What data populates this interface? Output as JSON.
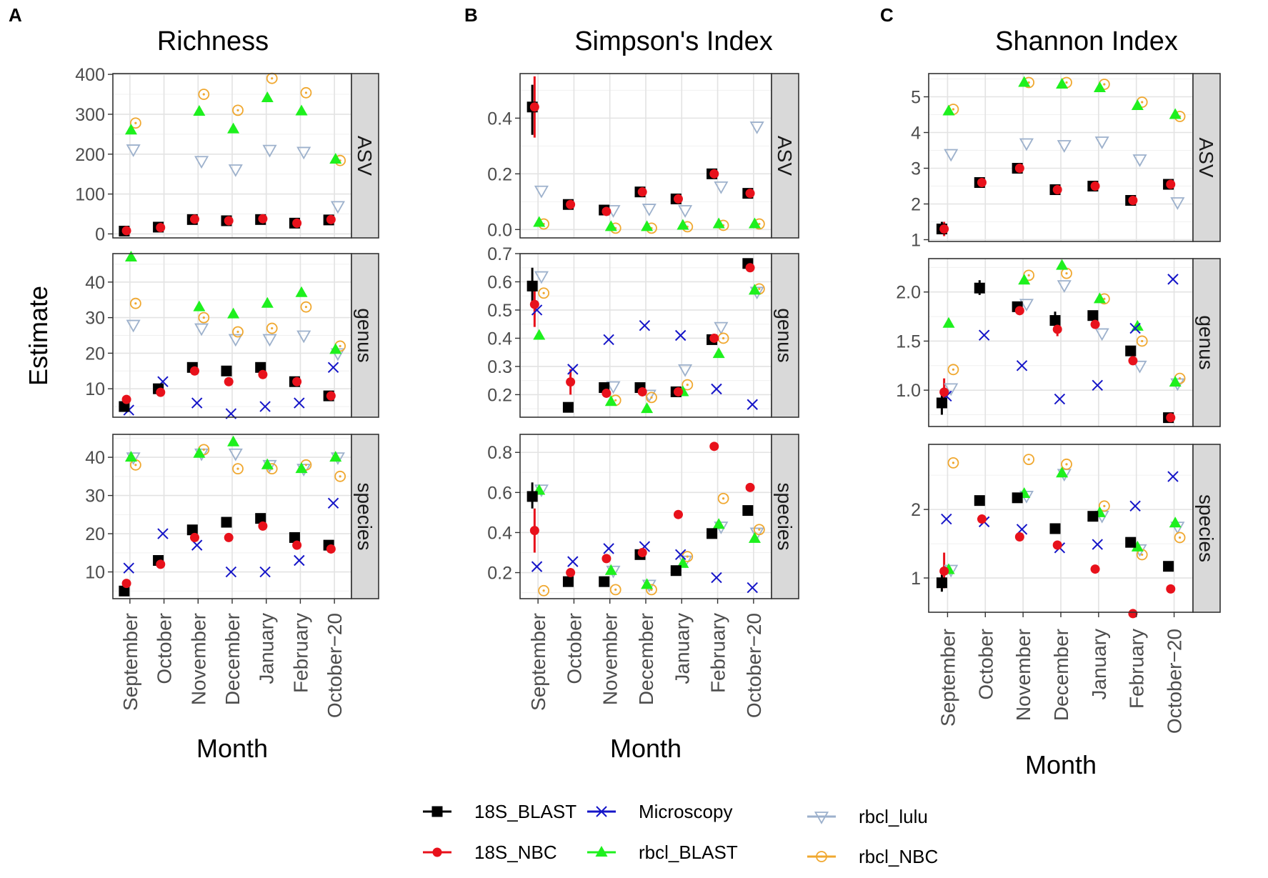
{
  "chart_data": {
    "type": "scatter",
    "ylabel": "Estimate",
    "xlabel": "Month",
    "months": [
      "September",
      "October",
      "November",
      "December",
      "January",
      "February",
      "October−20"
    ],
    "rows": [
      "ASV",
      "genus",
      "species"
    ],
    "series": [
      {
        "key": "blast18",
        "name": "18S_BLAST",
        "color": "#000000",
        "shape": "square"
      },
      {
        "key": "nbc18",
        "name": "18S_NBC",
        "color": "#e8111b",
        "shape": "circle"
      },
      {
        "key": "micro",
        "name": "Microscopy",
        "color": "#1515c8",
        "shape": "x"
      },
      {
        "key": "rblast",
        "name": "rbcl_BLAST",
        "color": "#1ef01e",
        "shape": "triangle"
      },
      {
        "key": "lulu",
        "name": "rbcl_lulu",
        "color": "#9db1cc",
        "shape": "triangle-down"
      },
      {
        "key": "rnbc",
        "name": "rbcl_NBC",
        "color": "#f0a830",
        "shape": "circle-dot"
      }
    ],
    "legend_order": [
      "blast18",
      "micro",
      "lulu",
      "nbc18",
      "rblast",
      "rnbc"
    ],
    "panels": [
      {
        "letter": "A",
        "title": "Richness",
        "facets": [
          {
            "row": "ASV",
            "ylim": [
              -10,
              402
            ],
            "yticks": [
              0,
              100,
              200,
              300,
              400
            ],
            "data": {
              "blast18": [
                7,
                17,
                36,
                33,
                36,
                27,
                35
              ],
              "nbc18": [
                8,
                16,
                37,
                33,
                38,
                27,
                36
              ],
              "micro": [
                null,
                null,
                null,
                null,
                null,
                null,
                null
              ],
              "rblast": [
                260,
                null,
                307,
                263,
                341,
                308,
                187
              ],
              "lulu": [
                212,
                null,
                183,
                162,
                211,
                206,
                70
              ],
              "rnbc": [
                278,
                null,
                350,
                310,
                390,
                354,
                184
              ]
            },
            "errors": {}
          },
          {
            "row": "genus",
            "ylim": [
              2,
              48
            ],
            "yticks": [
              10,
              20,
              30,
              40
            ],
            "data": {
              "blast18": [
                5,
                10,
                16,
                15,
                16,
                12,
                8
              ],
              "nbc18": [
                7,
                9,
                15,
                12,
                14,
                12,
                8
              ],
              "micro": [
                4,
                12,
                6,
                3,
                5,
                6,
                16
              ],
              "rblast": [
                47,
                null,
                33,
                31,
                34,
                37,
                21
              ],
              "lulu": [
                28,
                null,
                27,
                24,
                24,
                25,
                20
              ],
              "rnbc": [
                34,
                null,
                30,
                26,
                27,
                33,
                22
              ]
            },
            "errors": {}
          },
          {
            "row": "species",
            "ylim": [
              3,
              46
            ],
            "yticks": [
              10,
              20,
              30,
              40
            ],
            "data": {
              "blast18": [
                5,
                13,
                21,
                23,
                24,
                19,
                17
              ],
              "nbc18": [
                7,
                12,
                19,
                19,
                22,
                17,
                16
              ],
              "micro": [
                11,
                20,
                17,
                10,
                10,
                13,
                28
              ],
              "rblast": [
                40,
                null,
                41,
                44,
                38,
                37,
                40
              ],
              "lulu": [
                40,
                null,
                41,
                41,
                38,
                37,
                40
              ],
              "rnbc": [
                38,
                null,
                42,
                37,
                37,
                38,
                35
              ]
            },
            "errors": {}
          }
        ]
      },
      {
        "letter": "B",
        "title": "Simpson's Index",
        "facets": [
          {
            "row": "ASV",
            "ylim": [
              -0.03,
              0.56
            ],
            "yticks": [
              0.0,
              0.2,
              0.4
            ],
            "tick_labels": [
              "0.0",
              "0.2",
              "0.4"
            ],
            "data": {
              "blast18": [
                0.44,
                0.09,
                0.07,
                0.135,
                0.11,
                0.2,
                0.13
              ],
              "nbc18": [
                0.44,
                0.09,
                0.065,
                0.135,
                0.11,
                0.2,
                0.13
              ],
              "micro": [
                null,
                null,
                null,
                null,
                null,
                null,
                null
              ],
              "rblast": [
                0.025,
                null,
                0.01,
                0.01,
                0.015,
                0.02,
                0.02
              ],
              "lulu": [
                0.14,
                null,
                0.07,
                0.075,
                0.07,
                0.155,
                0.37
              ],
              "rnbc": [
                0.02,
                null,
                0.005,
                0.005,
                0.01,
                0.015,
                0.02
              ]
            },
            "errors": {
              "blast18": [
                [
                  0.34,
                  0.52
                ],
                null,
                null,
                null,
                null,
                null,
                null
              ],
              "nbc18": [
                [
                  0.33,
                  0.55
                ],
                null,
                null,
                null,
                null,
                null,
                null
              ]
            }
          },
          {
            "row": "genus",
            "ylim": [
              0.12,
              0.7
            ],
            "yticks": [
              0.2,
              0.3,
              0.4,
              0.5,
              0.6,
              0.7
            ],
            "tick_labels": [
              "0.2",
              "0.3",
              "0.4",
              "0.5",
              "0.6",
              "0.7"
            ],
            "data": {
              "blast18": [
                0.585,
                0.155,
                0.225,
                0.225,
                0.21,
                0.395,
                0.665
              ],
              "nbc18": [
                0.52,
                0.245,
                0.205,
                0.21,
                0.21,
                0.4,
                0.65
              ],
              "micro": [
                0.5,
                0.29,
                0.395,
                0.445,
                0.41,
                0.22,
                0.165
              ],
              "rblast": [
                0.41,
                null,
                0.175,
                0.15,
                0.21,
                0.345,
                0.57
              ],
              "lulu": [
                0.62,
                null,
                0.23,
                0.2,
                0.29,
                0.44,
                0.565
              ],
              "rnbc": [
                0.56,
                null,
                0.18,
                0.19,
                0.235,
                0.4,
                0.575
              ]
            },
            "errors": {
              "blast18": [
                [
                  0.52,
                  0.65
                ],
                null,
                null,
                null,
                null,
                null,
                null
              ],
              "nbc18": [
                [
                  0.44,
                  0.6
                ],
                [
                  0.2,
                  0.29
                ],
                null,
                null,
                null,
                null,
                null
              ]
            }
          },
          {
            "row": "species",
            "ylim": [
              0.07,
              0.89
            ],
            "yticks": [
              0.2,
              0.4,
              0.6,
              0.8
            ],
            "tick_labels": [
              "0.2",
              "0.4",
              "0.6",
              "0.8"
            ],
            "data": {
              "blast18": [
                0.58,
                0.155,
                0.155,
                0.29,
                0.21,
                0.395,
                0.51
              ],
              "nbc18": [
                0.41,
                0.2,
                0.27,
                0.3,
                0.49,
                0.83,
                0.625
              ],
              "micro": [
                0.23,
                0.255,
                0.32,
                0.33,
                0.29,
                0.175,
                0.125
              ],
              "rblast": [
                0.61,
                null,
                0.21,
                0.14,
                0.245,
                0.44,
                0.37
              ],
              "lulu": [
                0.615,
                null,
                0.21,
                0.14,
                0.26,
                0.43,
                0.4
              ],
              "rnbc": [
                0.11,
                null,
                0.115,
                0.115,
                0.28,
                0.57,
                0.415
              ]
            },
            "errors": {
              "blast18": [
                [
                  0.52,
                  0.65
                ],
                null,
                null,
                null,
                null,
                null,
                null
              ],
              "nbc18": [
                [
                  0.3,
                  0.52
                ],
                null,
                null,
                null,
                null,
                null,
                null
              ]
            }
          }
        ]
      },
      {
        "letter": "C",
        "title": "Shannon Index",
        "facets": [
          {
            "row": "ASV",
            "ylim": [
              0.95,
              5.65
            ],
            "yticks": [
              1,
              2,
              3,
              4,
              5
            ],
            "data": {
              "blast18": [
                1.3,
                2.6,
                3.0,
                2.4,
                2.5,
                2.1,
                2.55
              ],
              "nbc18": [
                1.3,
                2.6,
                3.0,
                2.4,
                2.5,
                2.1,
                2.55
              ],
              "micro": [
                null,
                null,
                null,
                null,
                null,
                null,
                null
              ],
              "rblast": [
                4.6,
                null,
                5.4,
                5.35,
                5.25,
                4.75,
                4.5
              ],
              "lulu": [
                3.4,
                null,
                3.7,
                3.65,
                3.75,
                3.25,
                2.05
              ],
              "rnbc": [
                4.65,
                null,
                5.4,
                5.4,
                5.35,
                4.85,
                4.45
              ]
            },
            "errors": {
              "blast18": [
                [
                  1.15,
                  1.5
                ],
                null,
                null,
                null,
                null,
                null,
                null
              ],
              "nbc18": [
                [
                  1.1,
                  1.5
                ],
                null,
                null,
                null,
                null,
                null,
                null
              ]
            }
          },
          {
            "row": "genus",
            "ylim": [
              0.63,
              2.34
            ],
            "yticks": [
              1.0,
              1.5,
              2.0
            ],
            "tick_labels": [
              "1.0",
              "1.5",
              "2.0"
            ],
            "data": {
              "blast18": [
                0.87,
                2.04,
                1.85,
                1.71,
                1.76,
                1.4,
                0.72
              ],
              "nbc18": [
                0.98,
                null,
                1.81,
                1.62,
                1.67,
                1.3,
                0.72
              ],
              "micro": [
                0.94,
                1.56,
                1.25,
                0.91,
                1.05,
                1.63,
                2.13
              ],
              "rblast": [
                1.68,
                null,
                2.12,
                2.27,
                1.93,
                1.65,
                1.08
              ],
              "lulu": [
                1.02,
                null,
                1.88,
                2.07,
                1.58,
                1.25,
                1.07
              ],
              "rnbc": [
                1.21,
                null,
                2.17,
                2.19,
                1.93,
                1.5,
                1.12
              ]
            },
            "errors": {
              "blast18": [
                [
                  0.75,
                  1.0
                ],
                [
                  1.97,
                  2.12
                ],
                null,
                [
                  1.62,
                  1.8
                ],
                null,
                null,
                null
              ],
              "nbc18": [
                [
                  0.85,
                  1.12
                ],
                null,
                null,
                [
                  1.55,
                  1.72
                ],
                null,
                null,
                null
              ]
            }
          },
          {
            "row": "species",
            "ylim": [
              0.5,
              2.95
            ],
            "yticks": [
              1,
              2
            ],
            "data": {
              "blast18": [
                0.93,
                2.13,
                2.17,
                1.72,
                1.9,
                1.52,
                1.17
              ],
              "nbc18": [
                1.1,
                1.86,
                1.6,
                1.48,
                1.13,
                0.48,
                0.84
              ],
              "micro": [
                1.86,
                1.82,
                1.71,
                1.44,
                1.49,
                2.05,
                2.48
              ],
              "rblast": [
                1.12,
                null,
                2.23,
                2.53,
                1.95,
                1.45,
                1.8
              ],
              "lulu": [
                1.12,
                null,
                2.2,
                2.52,
                1.91,
                1.42,
                1.75
              ],
              "rnbc": [
                2.68,
                null,
                2.73,
                2.66,
                2.05,
                1.34,
                1.59
              ]
            },
            "errors": {
              "blast18": [
                [
                  0.8,
                  1.05
                ],
                [
                  2.06,
                  2.2
                ],
                null,
                null,
                null,
                null,
                null
              ],
              "nbc18": [
                [
                  0.85,
                  1.37
                ],
                null,
                null,
                null,
                null,
                null,
                null
              ]
            }
          }
        ]
      }
    ]
  }
}
